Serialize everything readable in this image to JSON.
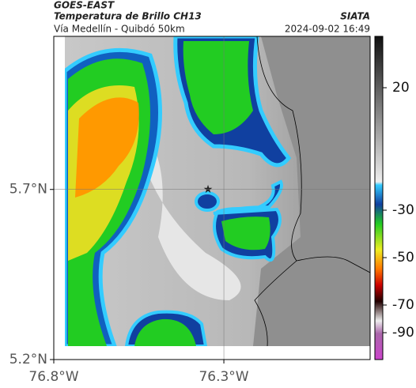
{
  "header": {
    "title": "GOES-EAST",
    "subtitle": "Temperatura de Brillo CH13",
    "route": "Vía Medellín - Quibdó 50km",
    "source": "SIATA",
    "datetime": "2024-09-02 16:49"
  },
  "map": {
    "xlim": [
      -76.8,
      -75.87
    ],
    "ylim": [
      5.2,
      6.15
    ],
    "xticks": [
      {
        "value": -76.8,
        "label": "76.8°W"
      },
      {
        "value": -76.3,
        "label": "76.3°W"
      }
    ],
    "yticks": [
      {
        "value": 5.7,
        "label": "5.7°N"
      },
      {
        "value": 5.2,
        "label": "5.2°N"
      }
    ],
    "grid": true
  },
  "colorbar": {
    "ticks": [
      20,
      -30,
      -50,
      -70,
      -90
    ]
  }
}
